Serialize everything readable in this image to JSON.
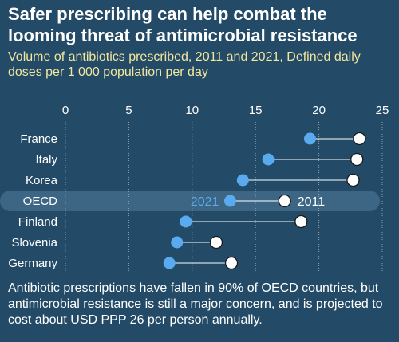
{
  "header": {
    "title": "Safer prescribing can help combat the looming threat of antimicrobial resistance",
    "subtitle": "Volume of antibiotics prescribed, 2011 and 2021, Defined daily doses per 1 000 population per day"
  },
  "footnote": "Antibiotic prescriptions have fallen in 90% of OECD countries, but antimicrobial resistance is still a major concern, and is projected to cost about USD PPP 26 per person annually.",
  "colors": {
    "background": "#234a66",
    "point_2021": "#5aaaf0",
    "point_2011": "#ffffff",
    "highlight_band": "#3d6684",
    "grid": "#8ca3b6",
    "label_2021": "#5aaaf0",
    "label_2011": "#ffffff"
  },
  "chart_data": {
    "type": "dumbbell",
    "title": "",
    "xlabel": "",
    "ylabel": "",
    "xlim": [
      0,
      25
    ],
    "xticks": [
      0,
      5,
      10,
      15,
      20,
      25
    ],
    "grid": "vertical-dashed",
    "highlight_category": "OECD",
    "categories": [
      "France",
      "Italy",
      "Korea",
      "OECD",
      "Finland",
      "Slovenia",
      "Germany"
    ],
    "series": [
      {
        "name": "2021",
        "values": [
          19.3,
          16.0,
          14.0,
          13.0,
          9.5,
          8.8,
          8.2
        ]
      },
      {
        "name": "2011",
        "values": [
          23.2,
          23.0,
          22.7,
          17.3,
          18.6,
          11.9,
          13.1
        ]
      }
    ]
  }
}
